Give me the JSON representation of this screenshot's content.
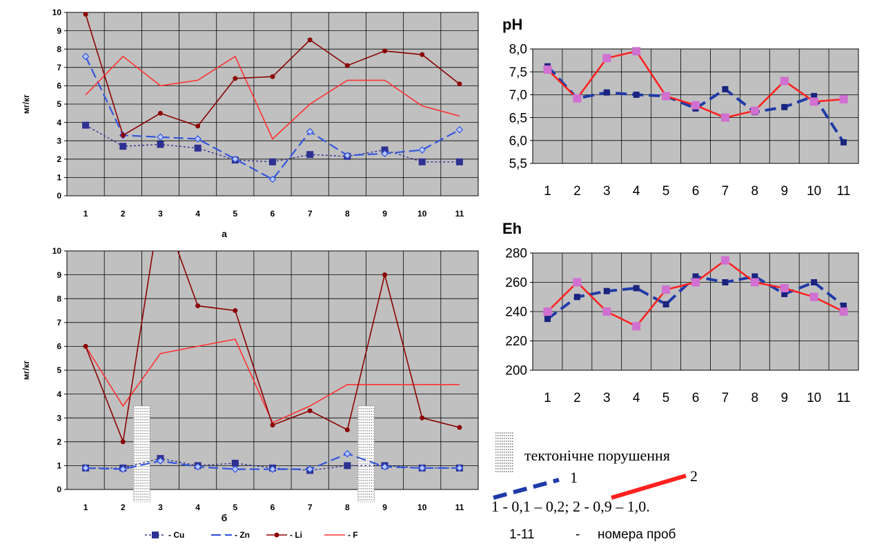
{
  "colors": {
    "plot_bg": "#c0c0c0",
    "grid": "#000000",
    "cu": "#2e3192",
    "zn": "#3355dd",
    "li": "#8b0000",
    "f": "#ff3030",
    "series1": "#1f3aa8",
    "series2": "#ff2020",
    "series2_marker": "#d070d0"
  },
  "chart_data": [
    {
      "id": "a",
      "type": "line",
      "title": "",
      "xlabel": "а",
      "ylabel": "мг/кг",
      "x": [
        1,
        2,
        3,
        4,
        5,
        6,
        7,
        8,
        9,
        10,
        11
      ],
      "ylim": [
        0,
        10
      ],
      "yticks": [
        "0",
        "1",
        "2",
        "3",
        "4",
        "5",
        "6",
        "7",
        "8",
        "9",
        "10"
      ],
      "grid": true,
      "series": [
        {
          "name": "Cu",
          "key": "cu",
          "values": [
            3.85,
            2.7,
            2.8,
            2.6,
            1.95,
            1.85,
            2.25,
            2.15,
            2.5,
            1.85,
            1.85
          ]
        },
        {
          "name": "Zn",
          "key": "zn",
          "values": [
            7.6,
            3.3,
            3.2,
            3.1,
            2.0,
            0.9,
            3.5,
            2.2,
            2.3,
            2.5,
            3.6
          ]
        },
        {
          "name": "Li",
          "key": "li",
          "values": [
            9.9,
            3.3,
            4.5,
            3.8,
            6.4,
            6.5,
            8.5,
            7.1,
            7.9,
            7.7,
            6.1
          ]
        },
        {
          "name": "F",
          "key": "f",
          "values": [
            5.5,
            7.6,
            6.0,
            6.3,
            7.6,
            3.1,
            5.0,
            6.3,
            6.3,
            4.9,
            4.35
          ]
        }
      ]
    },
    {
      "id": "b",
      "type": "line",
      "title": "",
      "xlabel": "б",
      "ylabel": "мг/кг",
      "x": [
        1,
        2,
        3,
        4,
        5,
        6,
        7,
        8,
        9,
        10,
        11
      ],
      "ylim": [
        0,
        10
      ],
      "yticks": [
        "0",
        "1",
        "2",
        "3",
        "4",
        "5",
        "6",
        "7",
        "8",
        "9",
        "10"
      ],
      "grid": true,
      "fault_zones": [
        2.5,
        8.5
      ],
      "series": [
        {
          "name": "Cu",
          "key": "cu",
          "values": [
            0.9,
            0.9,
            1.3,
            1.0,
            1.1,
            0.9,
            0.8,
            1.0,
            1.0,
            0.9,
            0.9
          ]
        },
        {
          "name": "Zn",
          "key": "zn",
          "values": [
            0.9,
            0.85,
            1.2,
            0.95,
            0.85,
            0.85,
            0.85,
            1.5,
            0.95,
            0.9,
            0.9
          ]
        },
        {
          "name": "Li",
          "key": "li",
          "values": [
            6.0,
            2.0,
            12.0,
            7.7,
            7.5,
            2.7,
            3.3,
            2.5,
            9.0,
            3.0,
            2.6
          ]
        },
        {
          "name": "F",
          "key": "f",
          "values": [
            6.0,
            3.5,
            5.7,
            6.0,
            6.3,
            2.8,
            3.5,
            4.4,
            4.4,
            4.4,
            4.4
          ]
        }
      ],
      "legend": [
        {
          "key": "cu",
          "label": "- Cu"
        },
        {
          "key": "zn",
          "label": "- Zn"
        },
        {
          "key": "li",
          "label": "- Li"
        },
        {
          "key": "f",
          "label": "- F"
        }
      ],
      "legend_position": "bottom"
    },
    {
      "id": "ph",
      "type": "line",
      "title": "pH",
      "x": [
        1,
        2,
        3,
        4,
        5,
        6,
        7,
        8,
        9,
        10,
        11
      ],
      "ylim": [
        5.5,
        8.0
      ],
      "yticks": [
        "5,5",
        "6,0",
        "6,5",
        "7,0",
        "7,5",
        "8,0"
      ],
      "grid": true,
      "series": [
        {
          "name": "1",
          "key": "series1",
          "values": [
            7.62,
            6.92,
            7.05,
            7.0,
            6.97,
            6.7,
            7.12,
            6.62,
            6.73,
            6.97,
            5.96
          ]
        },
        {
          "name": "2",
          "key": "series2",
          "values": [
            7.55,
            6.92,
            7.8,
            7.95,
            6.97,
            6.77,
            6.5,
            6.65,
            7.3,
            6.85,
            6.9
          ]
        }
      ]
    },
    {
      "id": "eh",
      "type": "line",
      "title": "Eh",
      "x": [
        1,
        2,
        3,
        4,
        5,
        6,
        7,
        8,
        9,
        10,
        11
      ],
      "ylim": [
        200,
        280
      ],
      "yticks": [
        "200",
        "220",
        "240",
        "260",
        "280"
      ],
      "grid": true,
      "series": [
        {
          "name": "1",
          "key": "series1",
          "values": [
            235,
            250,
            254,
            256,
            245,
            264,
            260,
            264,
            252,
            260,
            244
          ]
        },
        {
          "name": "2",
          "key": "series2",
          "values": [
            240,
            260,
            240,
            230,
            255,
            260,
            275,
            260,
            256,
            250,
            240
          ]
        }
      ]
    }
  ],
  "notes": {
    "fault_label": "тектонічне порушення",
    "series1_label": "1",
    "series2_label": "2",
    "depths": "1 - 0,1 – 0,2; 2 -  0,9 – 1,0.",
    "samples_range": "1-11",
    "samples_sep": "-",
    "samples_label": "номера проб"
  }
}
